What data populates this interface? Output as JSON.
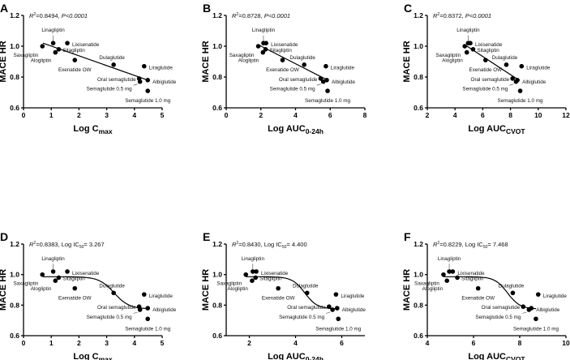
{
  "chart_data": [
    {
      "id": "A",
      "type": "scatter",
      "title": "",
      "fit": "linear",
      "stat_r2": "0.8494",
      "stat_extra": "P<0.0001",
      "stat_kind": "p",
      "xlabel": "Log C",
      "xlabel_sub": "max",
      "ylabel": "MACE HR",
      "xlim": [
        0,
        5
      ],
      "xticks": [
        0,
        1,
        2,
        3,
        4,
        5
      ],
      "ylim": [
        0.6,
        1.2
      ],
      "yticks": [
        "0.6",
        "0.8",
        "1.0",
        "1.2"
      ],
      "x": [
        0.68,
        1.07,
        1.58,
        1.27,
        1.15,
        1.85,
        3.25,
        4.35,
        4.17,
        4.2,
        4.48,
        4.48
      ],
      "fit_line": [
        [
          0.7,
          1.02
        ],
        [
          4.48,
          0.78
        ]
      ]
    },
    {
      "id": "B",
      "type": "scatter",
      "fit": "linear",
      "stat_r2": "0.8728",
      "stat_extra": "P<0.0001",
      "stat_kind": "p",
      "xlabel": "Log AUC",
      "xlabel_sub": "0-24h",
      "ylabel": "MACE HR",
      "xlim": [
        0,
        8
      ],
      "xticks": [
        0,
        2,
        4,
        6,
        8
      ],
      "ylim": [
        0.6,
        1.2
      ],
      "yticks": [
        "0.6",
        "0.8",
        "1.0",
        "1.2"
      ],
      "x": [
        1.85,
        2.15,
        2.3,
        2.27,
        2.12,
        3.25,
        4.5,
        5.75,
        5.45,
        5.6,
        5.8,
        5.85
      ],
      "fit_line": [
        [
          1.85,
          1.01
        ],
        [
          5.85,
          0.78
        ]
      ]
    },
    {
      "id": "C",
      "type": "scatter",
      "fit": "linear",
      "stat_r2": "0.8372",
      "stat_extra": "P<0.0001",
      "stat_kind": "p",
      "xlabel": "Log AUC",
      "xlabel_sub": "CVOT",
      "ylabel": "MACE HR",
      "xlim": [
        2,
        12
      ],
      "xticks": [
        2,
        4,
        6,
        8,
        10,
        12
      ],
      "ylim": [
        0.6,
        1.2
      ],
      "yticks": [
        "0.6",
        "0.8",
        "1.0",
        "1.2"
      ],
      "x": [
        4.7,
        4.95,
        5.1,
        5.3,
        4.85,
        6.2,
        7.7,
        8.8,
        8.15,
        8.4,
        8.5,
        8.7
      ],
      "fit_line": [
        [
          4.7,
          1.01
        ],
        [
          8.6,
          0.78
        ]
      ]
    },
    {
      "id": "D",
      "type": "scatter",
      "fit": "sigmoid",
      "stat_r2": "0.8383",
      "stat_extra": "3.267",
      "stat_kind": "ic50",
      "xlabel": "Log C",
      "xlabel_sub": "max",
      "ylabel": "MACE HR",
      "xlim": [
        0,
        5
      ],
      "xticks": [
        0,
        1,
        2,
        3,
        4,
        5
      ],
      "ylim": [
        0.6,
        1.2
      ],
      "yticks": [
        "0.6",
        "0.8",
        "1.0",
        "1.2"
      ],
      "x": [
        0.68,
        1.07,
        1.58,
        1.27,
        1.15,
        1.85,
        3.25,
        4.35,
        4.17,
        4.2,
        4.48,
        4.48
      ],
      "log_ic50": 3.267,
      "fit_top": 0.986,
      "fit_bottom": 0.775,
      "fit_range": [
        0.7,
        4.48
      ]
    },
    {
      "id": "E",
      "type": "scatter",
      "fit": "sigmoid",
      "stat_r2": "0.8430",
      "stat_extra": "4.400",
      "stat_kind": "ic50",
      "xlabel": "Log AUC",
      "xlabel_sub": "0-24h",
      "ylabel": "MACE HR",
      "xlim": [
        1,
        7
      ],
      "xticks": [
        2,
        4,
        6
      ],
      "ylim": [
        0.6,
        1.2
      ],
      "yticks": [
        "0.6",
        "0.8",
        "1.0",
        "1.2"
      ],
      "x": [
        1.85,
        2.15,
        2.3,
        2.27,
        2.12,
        3.25,
        4.5,
        5.75,
        5.45,
        5.6,
        5.8,
        5.85
      ],
      "log_ic50": 4.4,
      "fit_top": 0.986,
      "fit_bottom": 0.775,
      "fit_range": [
        1.85,
        5.85
      ]
    },
    {
      "id": "F",
      "type": "scatter",
      "fit": "sigmoid",
      "stat_r2": "0.8229",
      "stat_extra": "7.468",
      "stat_kind": "ic50",
      "xlabel": "Log AUC",
      "xlabel_sub": "CVOT",
      "ylabel": "MACE HR",
      "xlim": [
        4,
        10
      ],
      "xticks": [
        4,
        6,
        8,
        10
      ],
      "ylim": [
        0.6,
        1.2
      ],
      "yticks": [
        "0.6",
        "0.8",
        "1.0",
        "1.2"
      ],
      "x": [
        4.7,
        4.95,
        5.1,
        5.3,
        4.85,
        6.2,
        7.7,
        8.8,
        8.15,
        8.4,
        8.5,
        8.7
      ],
      "log_ic50": 7.468,
      "fit_top": 0.986,
      "fit_bottom": 0.775,
      "fit_range": [
        4.7,
        8.7
      ]
    }
  ],
  "compounds": [
    "Saxagliptin",
    "Linagliptin",
    "Lixisenatide",
    "Sitagliptin",
    "Alogliptin",
    "Exenatide OW",
    "Dulaglutide",
    "Liraglutide",
    "Oral semaglutide",
    "Semaglutide 0.5 mg",
    "Albiglutide",
    "Semaglutide 1.0 mg"
  ],
  "mace_hr": [
    1.0,
    1.02,
    1.02,
    0.98,
    0.96,
    0.91,
    0.88,
    0.87,
    0.79,
    0.77,
    0.78,
    0.71
  ],
  "stat_labels": {
    "r2": "R",
    "r2_sup": "2",
    "ic50": "Log IC",
    "ic50_sub": "50"
  }
}
